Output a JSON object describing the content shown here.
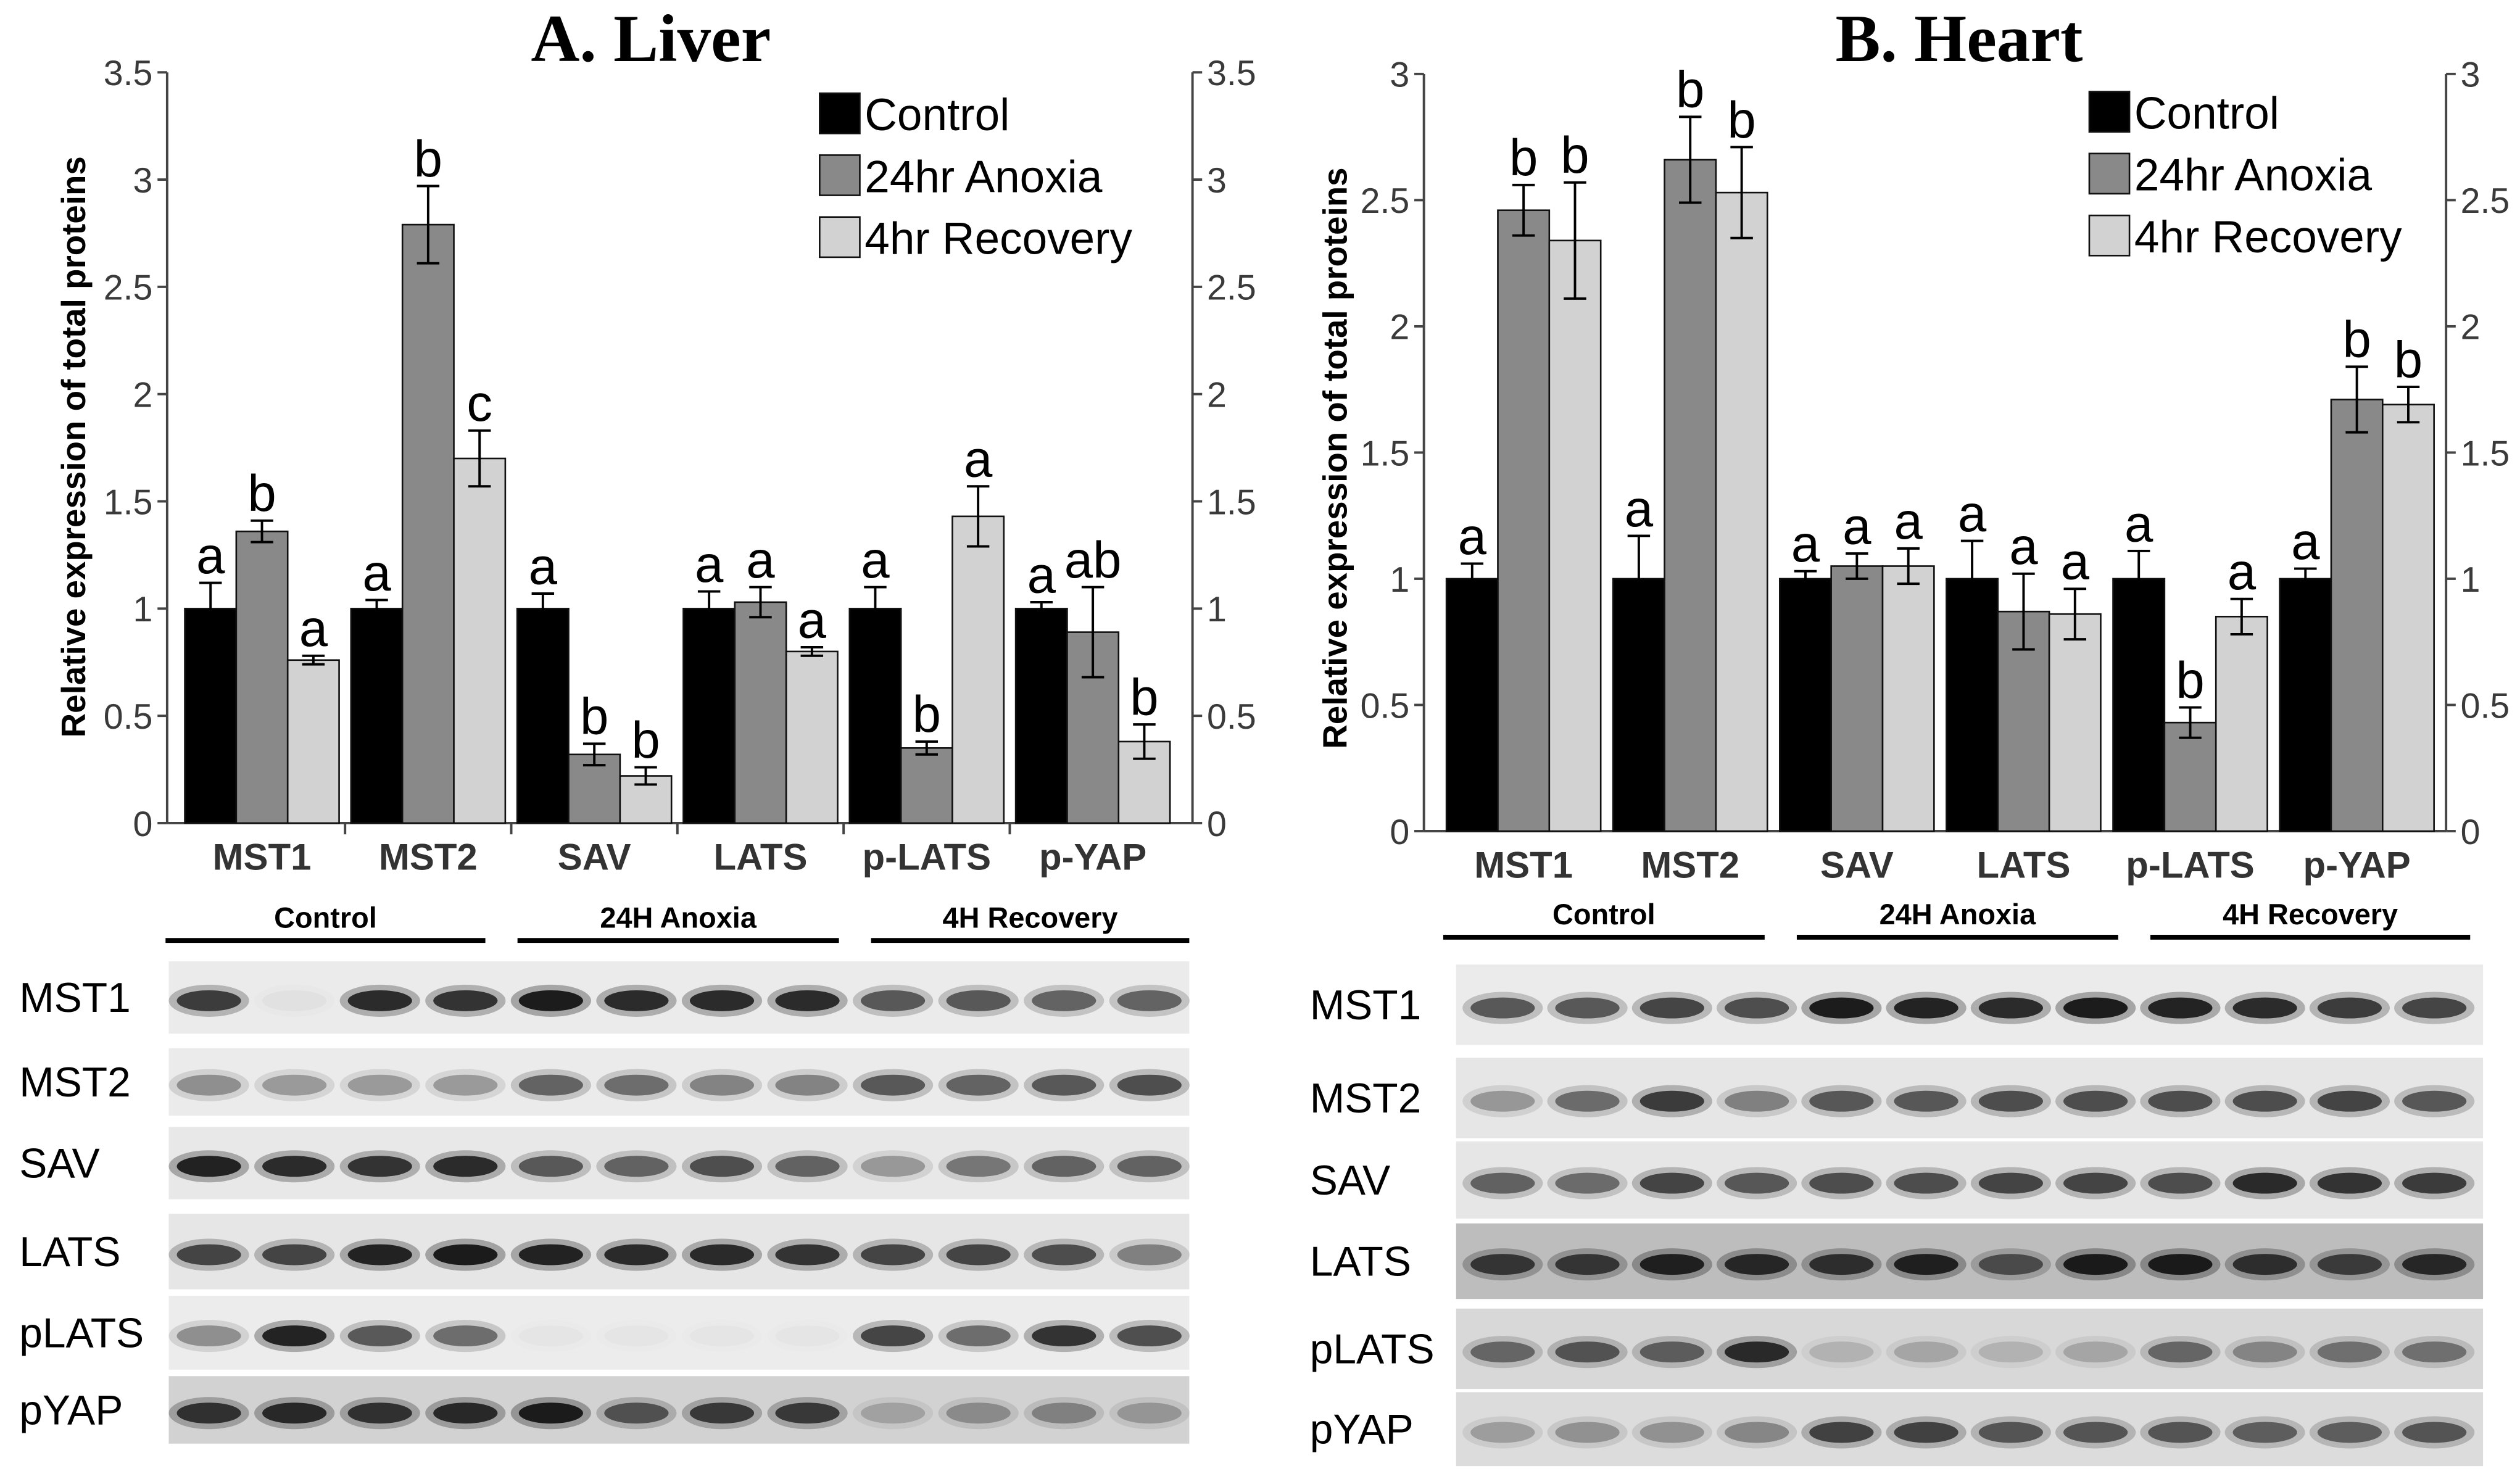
{
  "chart_data": [
    {
      "type": "bar",
      "title": "A. Liver",
      "xlabel": "",
      "ylabel": "Relative expression of total proteins",
      "ylim": [
        0,
        3.5
      ],
      "yticks": [
        "0",
        "0.5",
        "1",
        "1.5",
        "2",
        "2.5",
        "3",
        "3.5"
      ],
      "legend_position": "top-right",
      "categories": [
        "MST1",
        "MST2",
        "SAV",
        "LATS",
        "p-LATS",
        "p-YAP"
      ],
      "series": [
        {
          "name": "Control",
          "color": "#000000",
          "values": [
            1.0,
            1.0,
            1.0,
            1.0,
            1.0,
            1.0
          ],
          "errors": [
            0.12,
            0.04,
            0.07,
            0.08,
            0.1,
            0.03
          ],
          "letters": [
            "a",
            "a",
            "a",
            "a",
            "a",
            "a"
          ]
        },
        {
          "name": "24hr Anoxia",
          "color": "#898989",
          "values": [
            1.36,
            2.79,
            0.32,
            1.03,
            0.35,
            0.89
          ],
          "errors": [
            0.05,
            0.18,
            0.05,
            0.07,
            0.03,
            0.21
          ],
          "letters": [
            "b",
            "b",
            "b",
            "a",
            "b",
            "ab"
          ]
        },
        {
          "name": "4hr Recovery",
          "color": "#d2d2d2",
          "values": [
            0.76,
            1.7,
            0.22,
            0.8,
            1.43,
            0.38
          ],
          "errors": [
            0.02,
            0.13,
            0.04,
            0.02,
            0.14,
            0.08
          ],
          "letters": [
            "a",
            "c",
            "b",
            "a",
            "a",
            "b"
          ]
        }
      ]
    },
    {
      "type": "bar",
      "title": "B. Heart",
      "xlabel": "",
      "ylabel": "Relative expression of total proteins",
      "ylim": [
        0,
        3
      ],
      "yticks": [
        "0",
        "0.5",
        "1",
        "1.5",
        "2",
        "2.5",
        "3"
      ],
      "legend_position": "top-right",
      "categories": [
        "MST1",
        "MST2",
        "SAV",
        "LATS",
        "p-LATS",
        "p-YAP"
      ],
      "series": [
        {
          "name": "Control",
          "color": "#000000",
          "values": [
            1.0,
            1.0,
            1.0,
            1.0,
            1.0,
            1.0
          ],
          "errors": [
            0.06,
            0.17,
            0.03,
            0.15,
            0.11,
            0.04
          ],
          "letters": [
            "a",
            "a",
            "a",
            "a",
            "a",
            "a"
          ]
        },
        {
          "name": "24hr Anoxia",
          "color": "#898989",
          "values": [
            2.46,
            2.66,
            1.05,
            0.87,
            0.43,
            1.71
          ],
          "errors": [
            0.1,
            0.17,
            0.05,
            0.15,
            0.06,
            0.13
          ],
          "letters": [
            "b",
            "b",
            "a",
            "a",
            "b",
            "b"
          ]
        },
        {
          "name": "4hr Recovery",
          "color": "#d2d2d2",
          "values": [
            2.34,
            2.53,
            1.05,
            0.86,
            0.85,
            1.69
          ],
          "errors": [
            0.23,
            0.18,
            0.07,
            0.1,
            0.07,
            0.07
          ],
          "letters": [
            "b",
            "b",
            "a",
            "a",
            "a",
            "b"
          ]
        }
      ]
    }
  ],
  "blots": [
    {
      "group_labels": [
        "Control",
        "24H Anoxia",
        "4H Recovery"
      ],
      "rows": [
        {
          "label": "MST1",
          "background": "#ebebeb",
          "bands": [
            0.75,
            0.03,
            0.85,
            0.8,
            0.95,
            0.85,
            0.85,
            0.85,
            0.6,
            0.6,
            0.55,
            0.55
          ]
        },
        {
          "label": "MST2",
          "background": "#ebebeb",
          "bands": [
            0.35,
            0.3,
            0.3,
            0.3,
            0.55,
            0.5,
            0.4,
            0.4,
            0.6,
            0.55,
            0.6,
            0.65
          ]
        },
        {
          "label": "SAV",
          "background": "#e8e8e8",
          "bands": [
            0.9,
            0.85,
            0.8,
            0.85,
            0.6,
            0.55,
            0.65,
            0.55,
            0.3,
            0.45,
            0.55,
            0.55
          ]
        },
        {
          "label": "LATS",
          "background": "#e6e6e6",
          "bands": [
            0.7,
            0.7,
            0.9,
            0.95,
            0.9,
            0.85,
            0.85,
            0.8,
            0.7,
            0.7,
            0.65,
            0.4
          ]
        },
        {
          "label": "pLATS",
          "background": "#ececec",
          "bands": [
            0.35,
            0.9,
            0.6,
            0.5,
            0.02,
            0.02,
            0.02,
            0.02,
            0.7,
            0.5,
            0.8,
            0.65
          ]
        },
        {
          "label": "pYAP",
          "background": "#d2d2d2",
          "bands": [
            0.8,
            0.85,
            0.8,
            0.85,
            0.95,
            0.6,
            0.75,
            0.75,
            0.2,
            0.3,
            0.35,
            0.25
          ]
        }
      ]
    },
    {
      "group_labels": [
        "Control",
        "24H Anoxia",
        "4H Recovery"
      ],
      "rows": [
        {
          "label": "MST1",
          "background": "#ebebeb",
          "bands": [
            0.6,
            0.6,
            0.7,
            0.65,
            0.95,
            0.9,
            0.85,
            0.95,
            0.9,
            0.85,
            0.75,
            0.7
          ]
        },
        {
          "label": "MST2",
          "background": "#e6e6e6",
          "bands": [
            0.3,
            0.5,
            0.75,
            0.4,
            0.6,
            0.6,
            0.65,
            0.65,
            0.65,
            0.65,
            0.7,
            0.6
          ]
        },
        {
          "label": "SAV",
          "background": "#e6e6e6",
          "bands": [
            0.55,
            0.5,
            0.7,
            0.6,
            0.65,
            0.65,
            0.7,
            0.7,
            0.65,
            0.85,
            0.8,
            0.75
          ]
        },
        {
          "label": "LATS",
          "background": "#bdbdbd",
          "bands": [
            0.75,
            0.75,
            0.9,
            0.85,
            0.8,
            0.9,
            0.6,
            0.95,
            0.95,
            0.8,
            0.7,
            0.85
          ]
        },
        {
          "label": "pLATS",
          "background": "#d8d8d8",
          "bands": [
            0.5,
            0.6,
            0.55,
            0.85,
            0.15,
            0.2,
            0.15,
            0.2,
            0.5,
            0.35,
            0.45,
            0.45
          ]
        },
        {
          "label": "pYAP",
          "background": "#dcdcdc",
          "bands": [
            0.25,
            0.3,
            0.3,
            0.35,
            0.7,
            0.7,
            0.6,
            0.6,
            0.6,
            0.55,
            0.55,
            0.6
          ]
        }
      ]
    }
  ]
}
